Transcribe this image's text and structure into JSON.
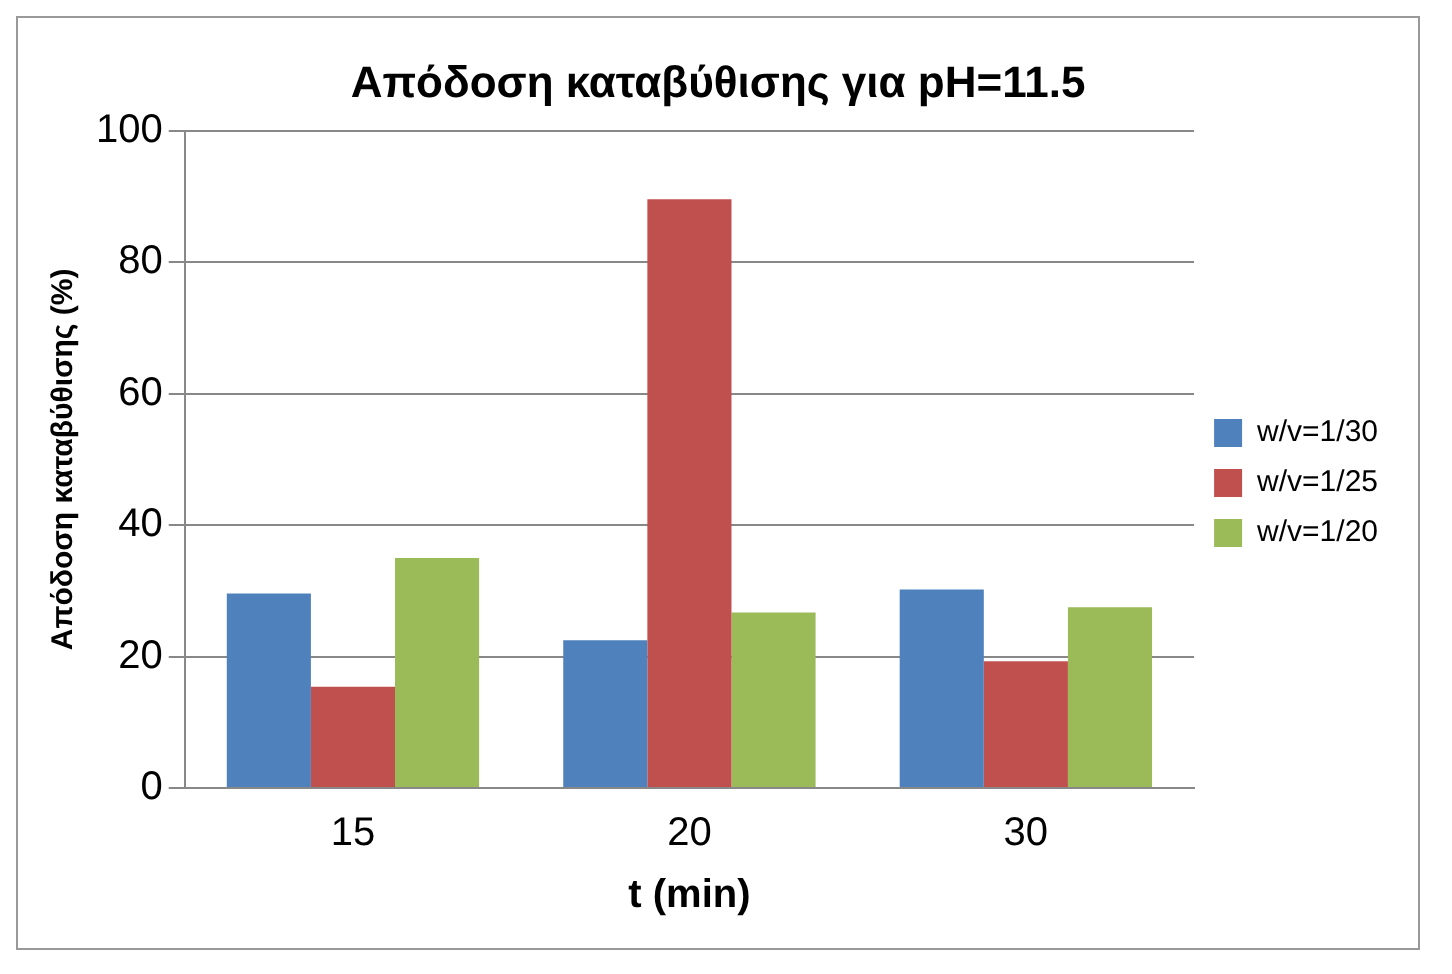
{
  "chart_data": {
    "type": "bar",
    "title": "Απόδοση καταβύθισης για pH=11.5",
    "xlabel": "t (min)",
    "ylabel": "Απόδοση καταβύθισης (%)",
    "categories": [
      "15",
      "20",
      "30"
    ],
    "series": [
      {
        "name": "w/v=1/30",
        "color": "#4f81bd",
        "values": [
          29.6,
          22.5,
          30.2
        ]
      },
      {
        "name": "w/v=1/25",
        "color": "#c0504d",
        "values": [
          15.4,
          89.6,
          19.3
        ]
      },
      {
        "name": "w/v=1/20",
        "color": "#9bbb59",
        "values": [
          35,
          26.7,
          27.5
        ]
      }
    ],
    "ylim": [
      0,
      100
    ],
    "yticks": [
      0,
      20,
      40,
      60,
      80,
      100
    ],
    "grid": "y",
    "legend": "right"
  }
}
